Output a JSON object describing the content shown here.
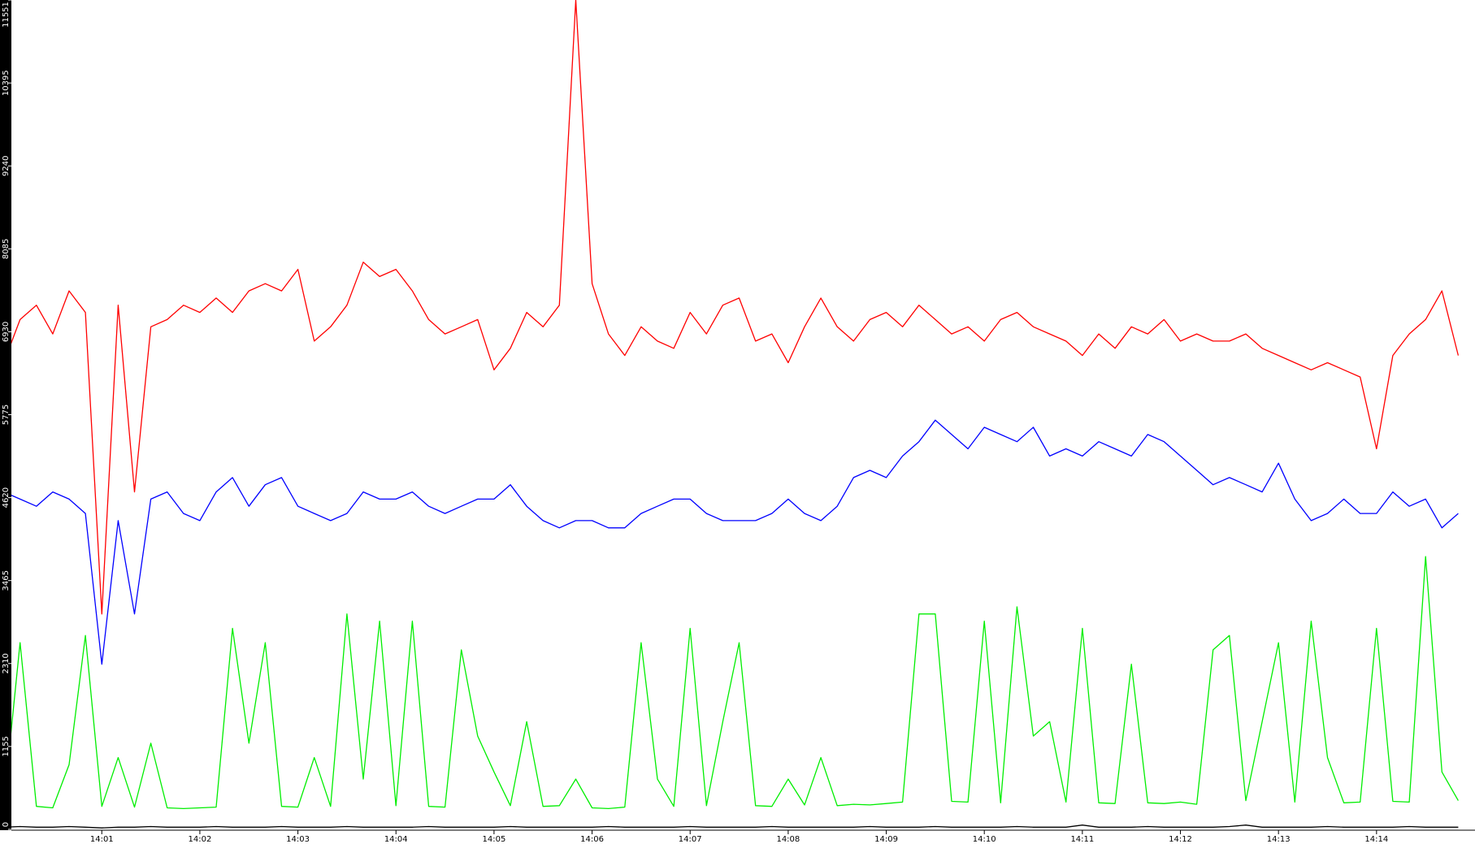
{
  "chart_data": {
    "type": "line",
    "categories": [
      null,
      null,
      null,
      null,
      null,
      null,
      "14:01",
      null,
      null,
      null,
      null,
      null,
      "14:02",
      null,
      null,
      null,
      null,
      null,
      "14:03",
      null,
      null,
      null,
      null,
      null,
      "14:04",
      null,
      null,
      null,
      null,
      null,
      "14:05",
      null,
      null,
      null,
      null,
      null,
      "14:06",
      null,
      null,
      null,
      null,
      null,
      "14:07",
      null,
      null,
      null,
      null,
      null,
      "14:08",
      null,
      null,
      null,
      null,
      null,
      "14:09",
      null,
      null,
      null,
      null,
      null,
      "14:10",
      null,
      null,
      null,
      null,
      null,
      "14:11",
      null,
      null,
      null,
      null,
      null,
      "14:12",
      null,
      null,
      null,
      null,
      null,
      "14:13",
      null,
      null,
      null,
      null,
      null,
      "14:14",
      null,
      null,
      null,
      null,
      null
    ],
    "ylim": [
      0,
      11551
    ],
    "yticks": [
      0,
      1155,
      2310,
      3465,
      4620,
      5775,
      6930,
      8085,
      9240,
      10395,
      11551
    ],
    "grid": false,
    "series": [
      {
        "color": "#ff0000",
        "values": [
          6500,
          7100,
          7300,
          6900,
          7500,
          7200,
          3000,
          7300,
          4700,
          7000,
          7100,
          7300,
          7200,
          7400,
          7200,
          7500,
          7600,
          7500,
          7800,
          6800,
          7000,
          7300,
          7900,
          7700,
          7800,
          7500,
          7100,
          6900,
          7000,
          7100,
          6400,
          6700,
          7200,
          7000,
          7300,
          11551,
          7600,
          6900,
          6600,
          7000,
          6800,
          6700,
          7200,
          6900,
          7300,
          7400,
          6800,
          6900,
          6500,
          7000,
          7400,
          7000,
          6800,
          7100,
          7200,
          7000,
          7300,
          7100,
          6900,
          7000,
          6800,
          7100,
          7200,
          7000,
          6900,
          6800,
          6600,
          6900,
          6700,
          7000,
          6900,
          7100,
          6800,
          6900,
          6800,
          6800,
          6900,
          6700,
          6600,
          6500,
          6400,
          6500,
          6400,
          6300,
          5300,
          6600,
          6900,
          7100,
          7500,
          6600
        ]
      },
      {
        "color": "#0000ff",
        "values": [
          4700,
          4600,
          4500,
          4700,
          4600,
          4400,
          2300,
          4300,
          3000,
          4600,
          4700,
          4400,
          4300,
          4700,
          4900,
          4500,
          4800,
          4900,
          4500,
          4400,
          4300,
          4400,
          4700,
          4600,
          4600,
          4700,
          4500,
          4400,
          4500,
          4600,
          4600,
          4800,
          4500,
          4300,
          4200,
          4300,
          4300,
          4200,
          4200,
          4400,
          4500,
          4600,
          4600,
          4400,
          4300,
          4300,
          4300,
          4400,
          4600,
          4400,
          4300,
          4500,
          4900,
          5000,
          4900,
          5200,
          5400,
          5700,
          5500,
          5300,
          5600,
          5500,
          5400,
          5600,
          5200,
          5300,
          5200,
          5400,
          5300,
          5200,
          5500,
          5400,
          5200,
          5000,
          4800,
          4900,
          4800,
          4700,
          5100,
          4600,
          4300,
          4400,
          4600,
          4400,
          4400,
          4700,
          4500,
          4600,
          4200,
          4400
        ]
      },
      {
        "color": "#00ee00",
        "values": [
          350,
          2600,
          320,
          300,
          900,
          2700,
          320,
          1000,
          310,
          1200,
          300,
          290,
          300,
          310,
          2800,
          1200,
          2600,
          320,
          310,
          1000,
          320,
          3000,
          700,
          2900,
          330,
          2900,
          320,
          310,
          2500,
          1300,
          800,
          330,
          1500,
          320,
          330,
          700,
          300,
          290,
          310,
          2600,
          700,
          320,
          2800,
          330,
          1500,
          2600,
          330,
          320,
          700,
          340,
          1000,
          330,
          350,
          340,
          360,
          380,
          3000,
          3000,
          390,
          380,
          2900,
          370,
          3100,
          1300,
          1500,
          380,
          2800,
          370,
          360,
          2300,
          370,
          360,
          380,
          350,
          2500,
          2700,
          400,
          1500,
          2600,
          380,
          2900,
          1000,
          370,
          380,
          2800,
          390,
          380,
          3800,
          800,
          400
        ]
      },
      {
        "color": "#000000",
        "values": [
          30,
          40,
          30,
          30,
          40,
          30,
          20,
          30,
          30,
          40,
          30,
          30,
          30,
          40,
          30,
          30,
          30,
          40,
          30,
          30,
          30,
          40,
          30,
          30,
          30,
          30,
          40,
          30,
          30,
          30,
          30,
          40,
          30,
          30,
          30,
          30,
          30,
          40,
          30,
          30,
          30,
          30,
          40,
          30,
          30,
          30,
          30,
          40,
          30,
          30,
          30,
          30,
          30,
          40,
          30,
          30,
          30,
          40,
          30,
          30,
          30,
          30,
          40,
          30,
          30,
          30,
          60,
          30,
          30,
          30,
          40,
          30,
          30,
          30,
          30,
          40,
          60,
          30,
          30,
          30,
          30,
          40,
          30,
          30,
          30,
          30,
          40,
          30,
          30,
          30
        ]
      }
    ]
  }
}
